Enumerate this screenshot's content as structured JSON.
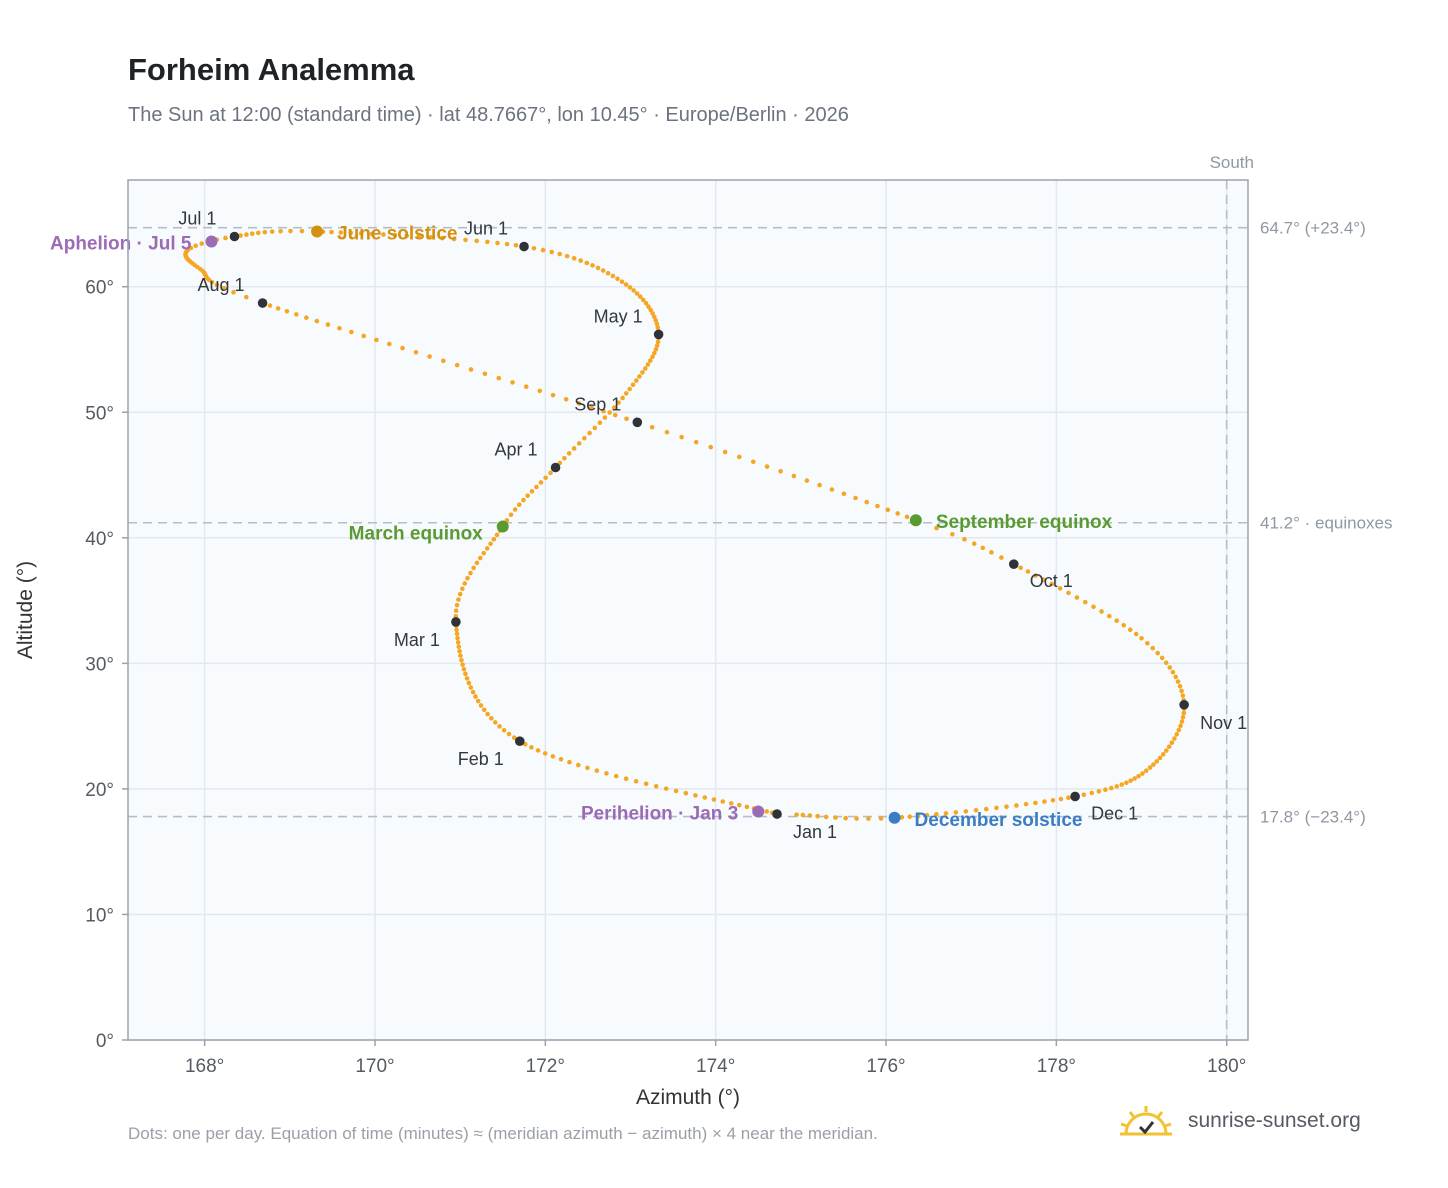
{
  "page": {
    "title": "Forheim Analemma",
    "subtitle": "The Sun at 12:00 (standard time) · lat 48.7667°, lon 10.45° · Europe/Berlin · 2026",
    "footnote": "Dots: one per day. Equation of time (minutes) ≈ (meridian azimuth − azimuth) × 4 near the meridian.",
    "brand": "sunrise-sunset.org",
    "brand_icon": "sun-icon"
  },
  "chart_data": {
    "type": "scatter",
    "xlabel": "Azimuth (°)",
    "ylabel": "Altitude (°)",
    "xlim": [
      167.1,
      180.25
    ],
    "ylim": [
      0,
      68.5
    ],
    "x_ticks": [
      168,
      170,
      172,
      174,
      176,
      178,
      180
    ],
    "x_tick_labels": [
      "168°",
      "170°",
      "172°",
      "174°",
      "176°",
      "178°",
      "180°"
    ],
    "y_ticks": [
      0,
      10,
      20,
      30,
      40,
      50,
      60
    ],
    "y_tick_labels": [
      "0°",
      "10°",
      "20°",
      "30°",
      "40°",
      "50°",
      "60°"
    ],
    "grid": true,
    "colors": {
      "path": "#f5a623",
      "month_marker": "#2f3338",
      "solstice_june": "#d4900f",
      "solstice_december": "#3a7dc4",
      "equinox": "#5a9a32",
      "apsis": "#9b6bb5",
      "reference_line": "#b4bec8",
      "plot_bg": "#f8fbfd",
      "axis": "#9aa3ae"
    },
    "reference_lines": [
      {
        "axis": "y",
        "value": 64.7,
        "label": "64.7° (+23.4°)"
      },
      {
        "axis": "y",
        "value": 41.2,
        "label": "41.2° · equinoxes"
      },
      {
        "axis": "y",
        "value": 17.8,
        "label": "17.8° (−23.4°)"
      },
      {
        "axis": "x",
        "value": 180,
        "label": "South"
      }
    ],
    "anchors": [
      {
        "day": 0,
        "az": 174.72,
        "alt": 18.0
      },
      {
        "day": 31,
        "az": 171.7,
        "alt": 23.8
      },
      {
        "day": 59,
        "az": 170.95,
        "alt": 33.3
      },
      {
        "day": 78,
        "az": 171.5,
        "alt": 40.9
      },
      {
        "day": 90,
        "az": 172.12,
        "alt": 45.6
      },
      {
        "day": 105,
        "az": 172.95,
        "alt": 51.5
      },
      {
        "day": 120,
        "az": 173.33,
        "alt": 56.2
      },
      {
        "day": 136,
        "az": 172.9,
        "alt": 60.4
      },
      {
        "day": 151,
        "az": 171.75,
        "alt": 63.2
      },
      {
        "day": 171,
        "az": 169.3,
        "alt": 64.4
      },
      {
        "day": 181,
        "az": 168.35,
        "alt": 64.0
      },
      {
        "day": 188,
        "az": 167.8,
        "alt": 62.9
      },
      {
        "day": 200,
        "az": 167.95,
        "alt": 61.4
      },
      {
        "day": 212,
        "az": 168.68,
        "alt": 58.7
      },
      {
        "day": 243,
        "az": 173.08,
        "alt": 49.2
      },
      {
        "day": 265,
        "az": 176.35,
        "alt": 41.4
      },
      {
        "day": 273,
        "az": 177.5,
        "alt": 37.9
      },
      {
        "day": 290,
        "az": 179.0,
        "alt": 32.0
      },
      {
        "day": 304,
        "az": 179.5,
        "alt": 26.7
      },
      {
        "day": 320,
        "az": 179.1,
        "alt": 21.7
      },
      {
        "day": 334,
        "az": 178.22,
        "alt": 19.4
      },
      {
        "day": 354,
        "az": 176.1,
        "alt": 17.7
      },
      {
        "day": 364,
        "az": 174.95,
        "alt": 17.95
      }
    ],
    "month_markers": [
      {
        "label": "Jan 1",
        "az": 174.72,
        "alt": 18.0
      },
      {
        "label": "Feb 1",
        "az": 171.7,
        "alt": 23.8
      },
      {
        "label": "Mar 1",
        "az": 170.95,
        "alt": 33.3
      },
      {
        "label": "Apr 1",
        "az": 172.12,
        "alt": 45.6
      },
      {
        "label": "May 1",
        "az": 173.33,
        "alt": 56.2
      },
      {
        "label": "Jun 1",
        "az": 171.75,
        "alt": 63.2
      },
      {
        "label": "Jul 1",
        "az": 168.35,
        "alt": 64.0
      },
      {
        "label": "Aug 1",
        "az": 168.68,
        "alt": 58.7
      },
      {
        "label": "Sep 1",
        "az": 173.08,
        "alt": 49.2
      },
      {
        "label": "Oct 1",
        "az": 177.5,
        "alt": 37.9
      },
      {
        "label": "Nov 1",
        "az": 179.5,
        "alt": 26.7
      },
      {
        "label": "Dec 1",
        "az": 178.22,
        "alt": 19.4
      }
    ],
    "events": [
      {
        "label": "June solstice",
        "az": 169.32,
        "alt": 64.4,
        "kind": "solstice_june"
      },
      {
        "label": "December solstice",
        "az": 176.1,
        "alt": 17.7,
        "kind": "solstice_december"
      },
      {
        "label": "March equinox",
        "az": 171.5,
        "alt": 40.9,
        "kind": "equinox"
      },
      {
        "label": "September equinox",
        "az": 176.35,
        "alt": 41.4,
        "kind": "equinox"
      },
      {
        "label": "Aphelion · Jul 5",
        "az": 168.08,
        "alt": 63.6,
        "kind": "apsis"
      },
      {
        "label": "Perihelion · Jan 3",
        "az": 174.5,
        "alt": 18.2,
        "kind": "apsis"
      }
    ]
  }
}
